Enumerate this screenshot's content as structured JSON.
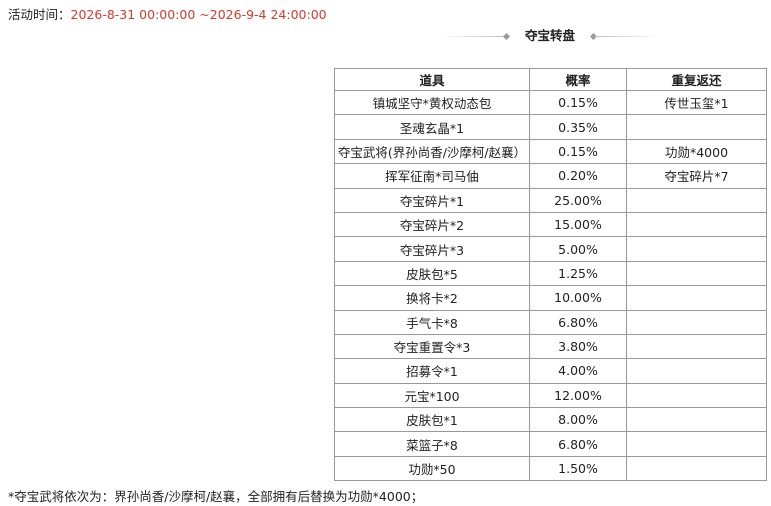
{
  "event_time": {
    "label": "活动时间：",
    "value": "2026-8-31 00:00:00 ~2026-9-4 24:00:00"
  },
  "section_title": "夺宝转盘",
  "table": {
    "headers": [
      "道具",
      "概率",
      "重复返还"
    ],
    "rows": [
      {
        "item": "镇城坚守*黄权动态包",
        "rate": "0.15%",
        "bonus": "传世玉玺*1"
      },
      {
        "item": "圣魂玄晶*1",
        "rate": "0.35%"
      },
      {
        "item": "夺宝武将(界孙尚香/沙摩柯/赵襄）",
        "rate": "0.15%",
        "bonus": "功勋*4000"
      },
      {
        "item": "挥军征南*司马伷",
        "rate": "0.20%",
        "bonus": "夺宝碎片*7"
      },
      {
        "item": "夺宝碎片*1",
        "rate": "25.00%"
      },
      {
        "item": "夺宝碎片*2",
        "rate": "15.00%"
      },
      {
        "item": "夺宝碎片*3",
        "rate": "5.00%"
      },
      {
        "item": "皮肤包*5",
        "rate": "1.25%"
      },
      {
        "item": "换将卡*2",
        "rate": "10.00%"
      },
      {
        "item": "手气卡*8",
        "rate": "6.80%"
      },
      {
        "item": "夺宝重置令*3",
        "rate": "3.80%"
      },
      {
        "item": "招募令*1",
        "rate": "4.00%"
      },
      {
        "item": "元宝*100",
        "rate": "12.00%"
      },
      {
        "item": "皮肤包*1",
        "rate": "8.00%"
      },
      {
        "item": "菜篮子*8",
        "rate": "6.80%"
      },
      {
        "item": "功勋*50",
        "rate": "1.50%"
      }
    ]
  },
  "footnote": "*夺宝武将依次为：界孙尚香/沙摩柯/赵襄，全部拥有后替换为功勋*4000；"
}
